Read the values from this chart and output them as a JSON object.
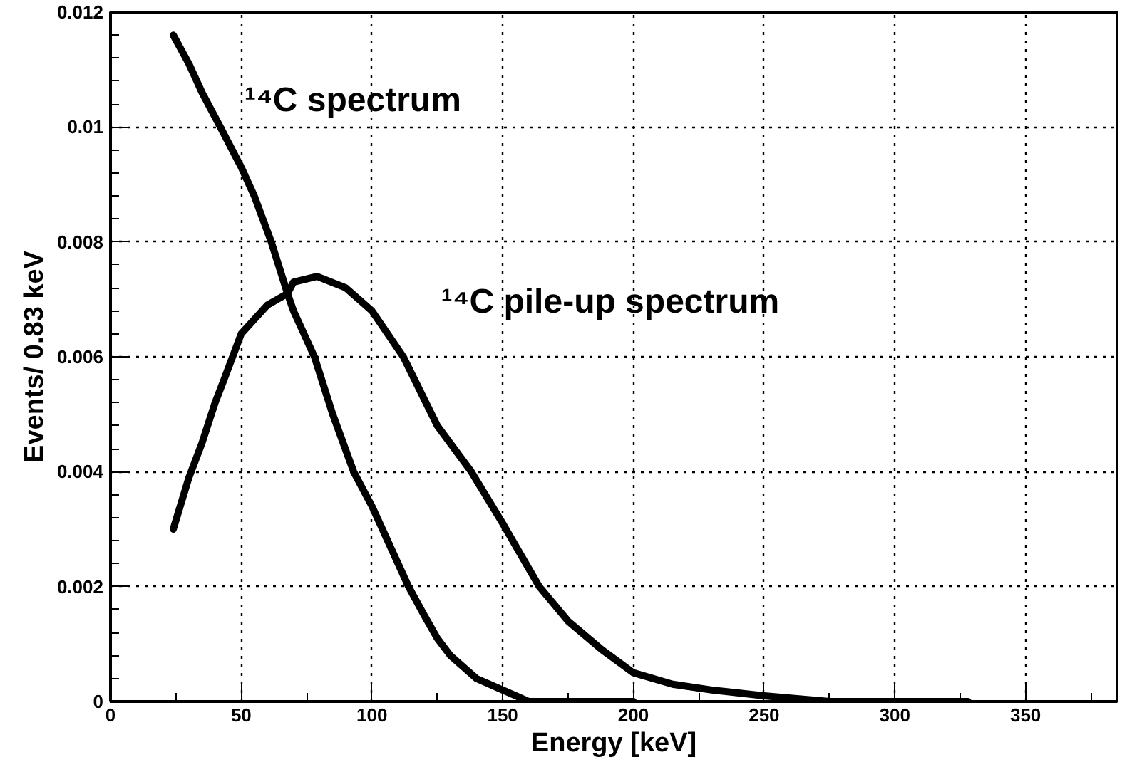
{
  "chart_data": {
    "type": "line",
    "xlabel": "Energy [keV]",
    "ylabel": "Events/ 0.83 keV",
    "xlim": [
      0,
      385
    ],
    "ylim": [
      0,
      0.012
    ],
    "xticks": [
      0,
      50,
      100,
      150,
      200,
      250,
      300,
      350
    ],
    "yticks": [
      0,
      0.002,
      0.004,
      0.006,
      0.008,
      0.01,
      0.012
    ],
    "grid": true,
    "series": [
      {
        "name": "¹⁴C spectrum",
        "color": "#000000",
        "x": [
          24,
          30,
          35,
          42,
          50,
          55,
          61.5,
          67.7,
          70,
          78,
          85,
          93,
          100,
          107,
          114,
          120,
          125,
          130,
          140,
          150,
          155,
          160,
          170,
          180,
          200
        ],
        "values": [
          0.0116,
          0.0111,
          0.0106,
          0.01,
          0.0093,
          0.0088,
          0.008,
          0.0071,
          0.0068,
          0.006,
          0.005,
          0.004,
          0.0034,
          0.0027,
          0.002,
          0.0015,
          0.0011,
          0.0008,
          0.0004,
          0.0002,
          0.0001,
          0,
          0,
          0,
          0
        ]
      },
      {
        "name": "¹⁴C pile-up spectrum",
        "color": "#000000",
        "x": [
          24,
          30,
          35,
          40,
          43.4,
          50,
          60,
          67.7,
          70,
          79,
          90,
          100,
          112,
          125,
          138,
          150,
          164,
          175,
          188,
          200,
          215,
          230,
          250,
          275,
          300,
          328
        ],
        "values": [
          0.003,
          0.0039,
          0.0045,
          0.0052,
          0.0056,
          0.0064,
          0.0069,
          0.0071,
          0.0073,
          0.0074,
          0.0072,
          0.0068,
          0.006,
          0.0048,
          0.004,
          0.0031,
          0.002,
          0.0014,
          0.0009,
          0.0005,
          0.0003,
          0.0002,
          0.0001,
          0,
          0,
          0
        ]
      }
    ]
  }
}
